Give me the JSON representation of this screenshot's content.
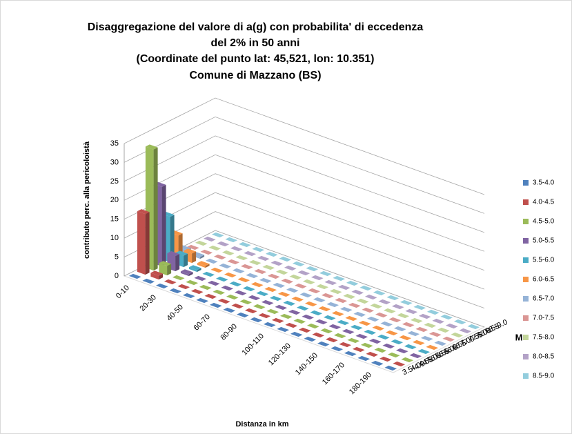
{
  "chart_data": {
    "type": "bar3d",
    "title": [
      "Disaggregazione del valore di a(g) con probabilita' di eccedenza",
      "del 2% in 50 anni",
      "(Coordinate del punto lat:  45,521, lon:  10.351)",
      "Comune di Mazzano (BS)"
    ],
    "y_label": "contributo perc. alla pericoloistà",
    "x_label": "Distanza in km",
    "z_label": "M",
    "categories": [
      "0-10",
      null,
      "20-30",
      null,
      "40-50",
      null,
      "60-70",
      null,
      "80-90",
      null,
      "100-110",
      null,
      "120-130",
      null,
      "140-150",
      null,
      "160-170",
      null,
      "180-190",
      null
    ],
    "ylim": [
      0,
      35
    ],
    "yticks": [
      0,
      5,
      10,
      15,
      20,
      25,
      30,
      35
    ],
    "grid": true,
    "legend": "right",
    "series": [
      {
        "name": "3.5-4.0",
        "color": "#4f81bd",
        "values": [
          0,
          0,
          0,
          0,
          0,
          0,
          0,
          0,
          0,
          0,
          0,
          0,
          0,
          0,
          0,
          0,
          0,
          0,
          0,
          0
        ]
      },
      {
        "name": "4.0-4.5",
        "color": "#c0504d",
        "values": [
          16,
          1,
          0,
          0,
          0,
          0,
          0,
          0,
          0,
          0,
          0,
          0,
          0,
          0,
          0,
          0,
          0,
          0,
          0,
          0
        ]
      },
      {
        "name": "4.5-5.0",
        "color": "#9bbb59",
        "values": [
          32,
          2.5,
          0,
          0,
          0,
          0,
          0,
          0,
          0,
          0,
          0,
          0,
          0,
          0,
          0,
          0,
          0,
          0,
          0,
          0
        ]
      },
      {
        "name": "5.0-5.5",
        "color": "#8064a2",
        "values": [
          21,
          4,
          0.5,
          0,
          0,
          0,
          0,
          0,
          0,
          0,
          0,
          0,
          0,
          0,
          0,
          0,
          0,
          0,
          0,
          0
        ]
      },
      {
        "name": "5.5-6.0",
        "color": "#4bacc6",
        "values": [
          12,
          3,
          0.5,
          0,
          0,
          0,
          0,
          0,
          0,
          0,
          0,
          0,
          0,
          0,
          0,
          0,
          0,
          0,
          0,
          0
        ]
      },
      {
        "name": "6.0-6.5",
        "color": "#f79646",
        "values": [
          6,
          2.5,
          0.5,
          0,
          0,
          0,
          0,
          0,
          0,
          0,
          0,
          0,
          0,
          0,
          0,
          0,
          0,
          0,
          0,
          0
        ]
      },
      {
        "name": "6.5-7.0",
        "color": "#95b3d7",
        "values": [
          1,
          0.5,
          0,
          0,
          0,
          0,
          0,
          0,
          0,
          0,
          0,
          0,
          0,
          0,
          0,
          0,
          0,
          0,
          0,
          0
        ]
      },
      {
        "name": "7.0-7.5",
        "color": "#da9694",
        "values": [
          0,
          0,
          0,
          0,
          0,
          0,
          0,
          0,
          0,
          0,
          0,
          0,
          0,
          0,
          0,
          0,
          0,
          0,
          0,
          0
        ]
      },
      {
        "name": "7.5-8.0",
        "color": "#c3d69b",
        "values": [
          0,
          0,
          0,
          0,
          0,
          0,
          0,
          0,
          0,
          0,
          0,
          0,
          0,
          0,
          0,
          0,
          0,
          0,
          0,
          0
        ]
      },
      {
        "name": "8.0-8.5",
        "color": "#b3a2c7",
        "values": [
          0,
          0,
          0,
          0,
          0,
          0,
          0,
          0,
          0,
          0,
          0,
          0,
          0,
          0,
          0,
          0,
          0,
          0,
          0,
          0
        ]
      },
      {
        "name": "8.5-9.0",
        "color": "#93cddd",
        "values": [
          0,
          0,
          0,
          0,
          0,
          0,
          0,
          0,
          0,
          0,
          0,
          0,
          0,
          0,
          0,
          0,
          0,
          0,
          0,
          0
        ]
      }
    ]
  }
}
